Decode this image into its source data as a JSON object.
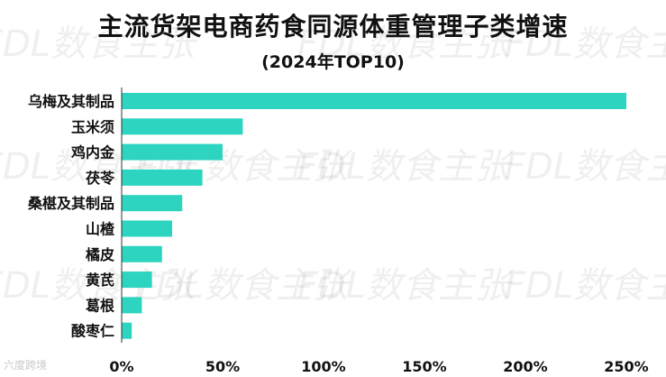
{
  "title": "主流货架电商药食同源体重管理子类增速",
  "subtitle": "(2024年TOP10)",
  "watermark": "FDL数食主张",
  "corner_watermark": "六度跨境",
  "chart_data": {
    "type": "bar",
    "orientation": "horizontal",
    "title": "主流货架电商药食同源体重管理子类增速",
    "subtitle": "(2024年TOP10)",
    "xlabel": "",
    "ylabel": "",
    "categories": [
      "乌梅及其制品",
      "玉米须",
      "鸡内金",
      "茯苓",
      "桑椹及其制品",
      "山楂",
      "橘皮",
      "黄芪",
      "葛根",
      "酸枣仁"
    ],
    "series": [
      {
        "values": [
          250,
          60,
          50,
          40,
          30,
          25,
          20,
          15,
          10,
          5
        ],
        "color": "#2DD4BF"
      }
    ],
    "xlim": [
      0,
      250
    ],
    "xticks": [
      0,
      50,
      100,
      150,
      200,
      250
    ],
    "xtick_labels": [
      "0%",
      "50%",
      "100%",
      "150%",
      "200%",
      "250%"
    ],
    "grid": false,
    "legend": "none",
    "bar_color": "#2DD4BF"
  }
}
